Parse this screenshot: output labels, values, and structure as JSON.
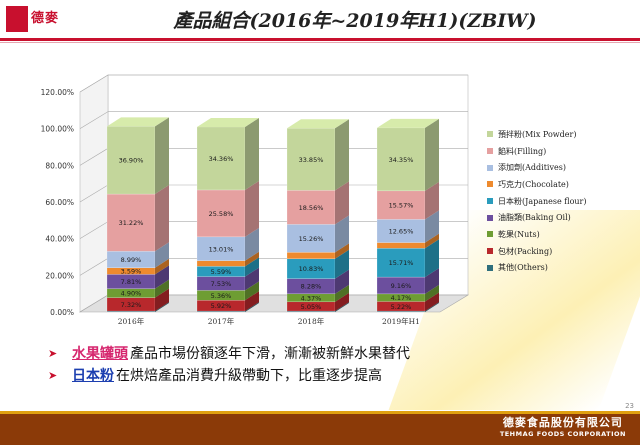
{
  "header": {
    "logo_text": "德麥",
    "title": "產品組合(2016年~2019年H1)(ZBIW)"
  },
  "chart_data": {
    "type": "bar",
    "stacked": true,
    "three_d": true,
    "categories": [
      "2016年",
      "2017年",
      "2018年",
      "2019年H1"
    ],
    "y_ticks": [
      "0.00%",
      "20.00%",
      "40.00%",
      "60.00%",
      "80.00%",
      "100.00%",
      "120.00%"
    ],
    "ylim": [
      0,
      120
    ],
    "grid": true,
    "legend_position": "right",
    "series": [
      {
        "name": "其他(Others)",
        "color": "#2f6f7d",
        "values": [
          0.5,
          0.5,
          0.5,
          0.5
        ],
        "labels": [
          "",
          "",
          "",
          ""
        ]
      },
      {
        "name": "包材(Packing)",
        "color": "#b8282c",
        "values": [
          7.32,
          5.92,
          5.05,
          5.22
        ],
        "labels": [
          "7.32%",
          "5.92%",
          "5.05%",
          "5.22%"
        ]
      },
      {
        "name": "乾果(Nuts)",
        "color": "#6e9d33",
        "values": [
          4.9,
          5.36,
          4.37,
          4.17
        ],
        "labels": [
          "4.90%",
          "5.36%",
          "4.37%",
          "4.17%"
        ]
      },
      {
        "name": "油脂類(Baking Oil)",
        "color": "#6c4f9e",
        "values": [
          7.81,
          7.53,
          8.28,
          9.16
        ],
        "labels": [
          "7.81%",
          "7.53%",
          "8.28%",
          "9.16%"
        ]
      },
      {
        "name": "日本粉(Japanese flour)",
        "color": "#2a9cbd",
        "values": [
          0,
          5.59,
          10.83,
          15.71
        ],
        "labels": [
          "",
          "5.59%",
          "10.83%",
          "15.71%"
        ]
      },
      {
        "name": "巧克力(Chocolate)",
        "color": "#ee8a2e",
        "values": [
          3.59,
          3.08,
          3.5,
          3.1
        ],
        "labels": [
          "3.59%",
          "",
          "",
          ""
        ]
      },
      {
        "name": "添加劑(Additives)",
        "color": "#a9bfe1",
        "values": [
          8.99,
          13.01,
          15.26,
          12.65
        ],
        "labels": [
          "8.99%",
          "13.01%",
          "15.26%",
          "12.65%"
        ]
      },
      {
        "name": "餡料(Filling)",
        "color": "#e5a0a0",
        "values": [
          31.22,
          25.58,
          18.56,
          15.57
        ],
        "labels": [
          "31.22%",
          "25.58%",
          "18.56%",
          "15.57%"
        ]
      },
      {
        "name": "預拌粉(Mix Powder)",
        "color": "#c3d69b",
        "values": [
          36.9,
          34.36,
          33.85,
          34.35
        ],
        "labels": [
          "36.90%",
          "34.36%",
          "33.85%",
          "34.35%"
        ]
      }
    ]
  },
  "bullets": [
    {
      "keyword": "水果罐頭",
      "text": "產品市場份額逐年下滑，漸漸被新鮮水果替代"
    },
    {
      "keyword": "日本粉",
      "text": "在烘焙產品消費升級帶動下，比重逐步提高"
    }
  ],
  "footer": {
    "company_zh": "德麥食品股份有限公司",
    "company_en": "TEHMAG FOODS CORPORATION",
    "page": "23"
  }
}
